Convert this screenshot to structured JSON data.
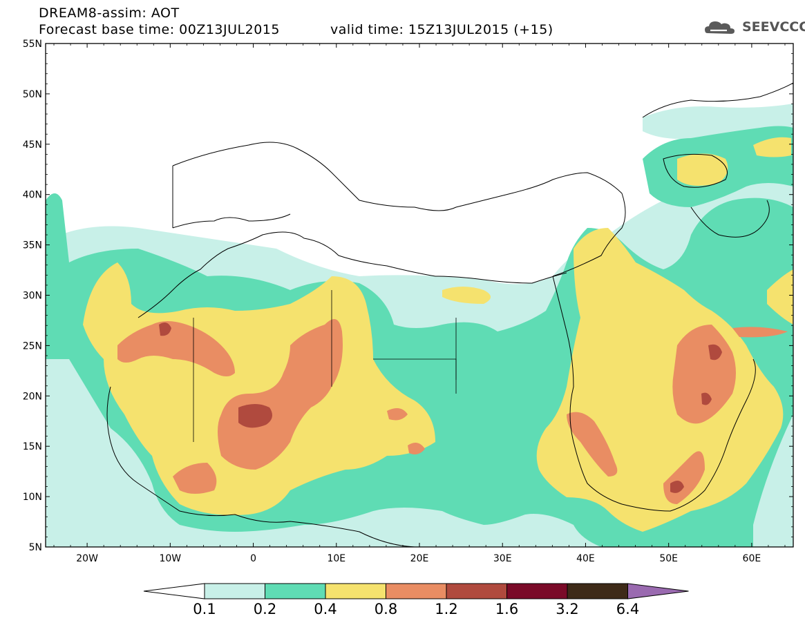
{
  "header": {
    "model_title": "DREAM8-assim: AOT",
    "base_time": "Forecast base time: 00Z13JUL2015",
    "valid_time": "valid time: 15Z13JUL2015 (+15)",
    "logo_text": "SEEVCCC"
  },
  "map": {
    "lon_range": [
      -25,
      65
    ],
    "lat_range": [
      5,
      55
    ],
    "lat_labels": [
      "5N",
      "10N",
      "15N",
      "20N",
      "25N",
      "30N",
      "35N",
      "40N",
      "45N",
      "50N",
      "55N"
    ],
    "lat_values": [
      5,
      10,
      15,
      20,
      25,
      30,
      35,
      40,
      45,
      50,
      55
    ],
    "lon_labels": [
      "20W",
      "10W",
      "0",
      "10E",
      "20E",
      "30E",
      "40E",
      "50E",
      "60E"
    ],
    "lon_values": [
      -20,
      -10,
      0,
      10,
      20,
      30,
      40,
      50,
      60
    ]
  },
  "colorbar": {
    "levels": [
      "0.1",
      "0.2",
      "0.4",
      "0.8",
      "1.2",
      "1.6",
      "3.2",
      "6.4"
    ],
    "colors": [
      "#ffffff",
      "#c8f0e8",
      "#5fdcb4",
      "#f5e26e",
      "#e98d63",
      "#b04a3e",
      "#7a0a28",
      "#3e2a18",
      "#9a6ab0"
    ]
  },
  "colors": {
    "level1": "#c8f0e8",
    "level2": "#5fdcb4",
    "level3": "#f5e26e",
    "level4": "#e98d63",
    "level5": "#b04a3e",
    "coast": "#000000"
  }
}
